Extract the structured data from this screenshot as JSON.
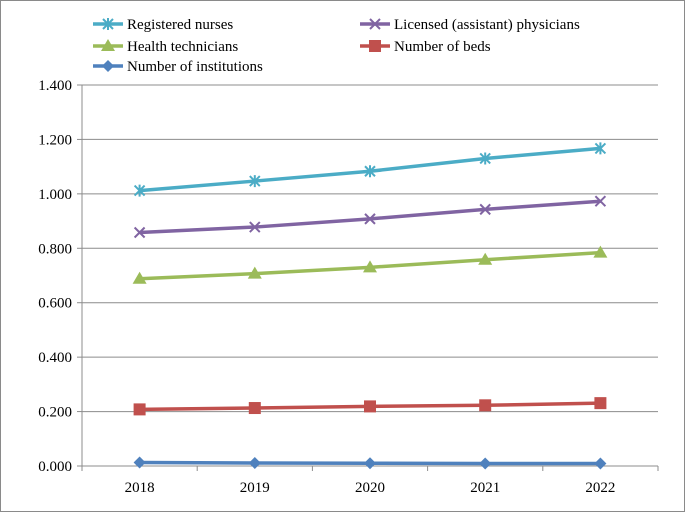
{
  "chart_data": {
    "type": "line",
    "title": "",
    "xlabel": "",
    "ylabel": "",
    "categories": [
      "2018",
      "2019",
      "2020",
      "2021",
      "2022"
    ],
    "ylim": [
      0,
      1.4
    ],
    "yticks": [
      "0.000",
      "0.200",
      "0.400",
      "0.600",
      "0.800",
      "1.000",
      "1.200",
      "1.400"
    ],
    "grid": "horizontal",
    "legend_position": "top",
    "series": [
      {
        "name": "Registered nurses",
        "marker": "asterisk",
        "color": "#4BACC6",
        "values": [
          1.012,
          1.047,
          1.083,
          1.13,
          1.167
        ]
      },
      {
        "name": "Licensed (assistant) physicians",
        "marker": "x",
        "color": "#8064A2",
        "values": [
          0.858,
          0.878,
          0.908,
          0.943,
          0.973
        ]
      },
      {
        "name": "Health technicians",
        "marker": "triangle",
        "color": "#9BBB59",
        "values": [
          0.688,
          0.707,
          0.73,
          0.758,
          0.784
        ]
      },
      {
        "name": "Number of beds",
        "marker": "square",
        "color": "#C0504D",
        "values": [
          0.208,
          0.213,
          0.219,
          0.223,
          0.231
        ]
      },
      {
        "name": "Number of institutions",
        "marker": "diamond",
        "color": "#4F81BD",
        "values": [
          0.013,
          0.011,
          0.01,
          0.009,
          0.009
        ]
      }
    ]
  }
}
